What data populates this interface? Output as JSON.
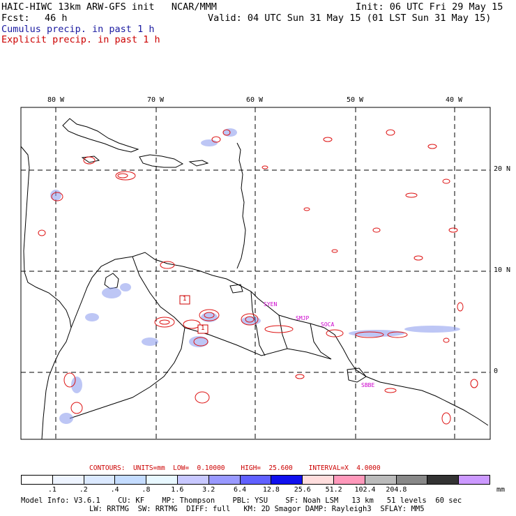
{
  "header": {
    "model": "HAIC-HIWC 13km ARW-GFS init   NCAR/MMM",
    "init": "Init: 06 UTC Fri 29 May 15",
    "fcst_label": "Fcst:",
    "fcst_value": "46 h",
    "valid": "Valid: 04 UTC Sun 31 May 15 (01 LST Sun 31 May 15)",
    "cumulus": "Cumulus precip. in past 1 h",
    "explicit": "Explicit precip. in past 1 h",
    "cumulus_color": "#1a1aa0",
    "explicit_color": "#cc0000"
  },
  "map": {
    "lon_labels": [
      "80 W",
      "70 W",
      "60 W",
      "50 W",
      "40 W"
    ],
    "lat_labels": [
      "20 N",
      "10 N",
      "0"
    ],
    "station_labels": [
      "SYEN",
      "SMJP",
      "SOCA",
      "SBBE"
    ],
    "station_color": "#cc00cc",
    "box_labels": [
      "1",
      "1"
    ],
    "contour_color": "#dd1111",
    "shade_color": "#8899ee"
  },
  "contours": {
    "label": "CONTOURS:",
    "units": "UNITS=mm",
    "low": "LOW=  0.10000",
    "high": "HIGH=  25.600",
    "interval": "INTERVAL=X  4.0000"
  },
  "colorbar": {
    "colors": [
      "#ffffff",
      "#eef4ff",
      "#dbe9ff",
      "#c4dcff",
      "#e8f8ff",
      "#c8c8ff",
      "#9999ff",
      "#6060ff",
      "#1010ee",
      "#ffdddd",
      "#ff99bb",
      "#bbbbbb",
      "#888888",
      "#333333",
      "#cc99ff"
    ],
    "ticks": [
      ".1",
      ".2",
      ".4",
      ".8",
      "1.6",
      "3.2",
      "6.4",
      "12.8",
      "25.6",
      "51.2",
      "102.4",
      "204.8"
    ],
    "units": "mm"
  },
  "model_info": {
    "line1": [
      "Model Info: V3.6.1",
      "CU: KF",
      "MP: Thompson",
      "PBL: YSU",
      "SF: Noah LSM",
      "13 km",
      "51 levels",
      "60 sec"
    ],
    "line2": [
      "LW: RRTMG",
      "SW: RRTMG",
      "DIFF: full",
      "KM: 2D Smagor",
      "DAMP: Rayleigh3",
      "SFLAY: MM5"
    ]
  }
}
